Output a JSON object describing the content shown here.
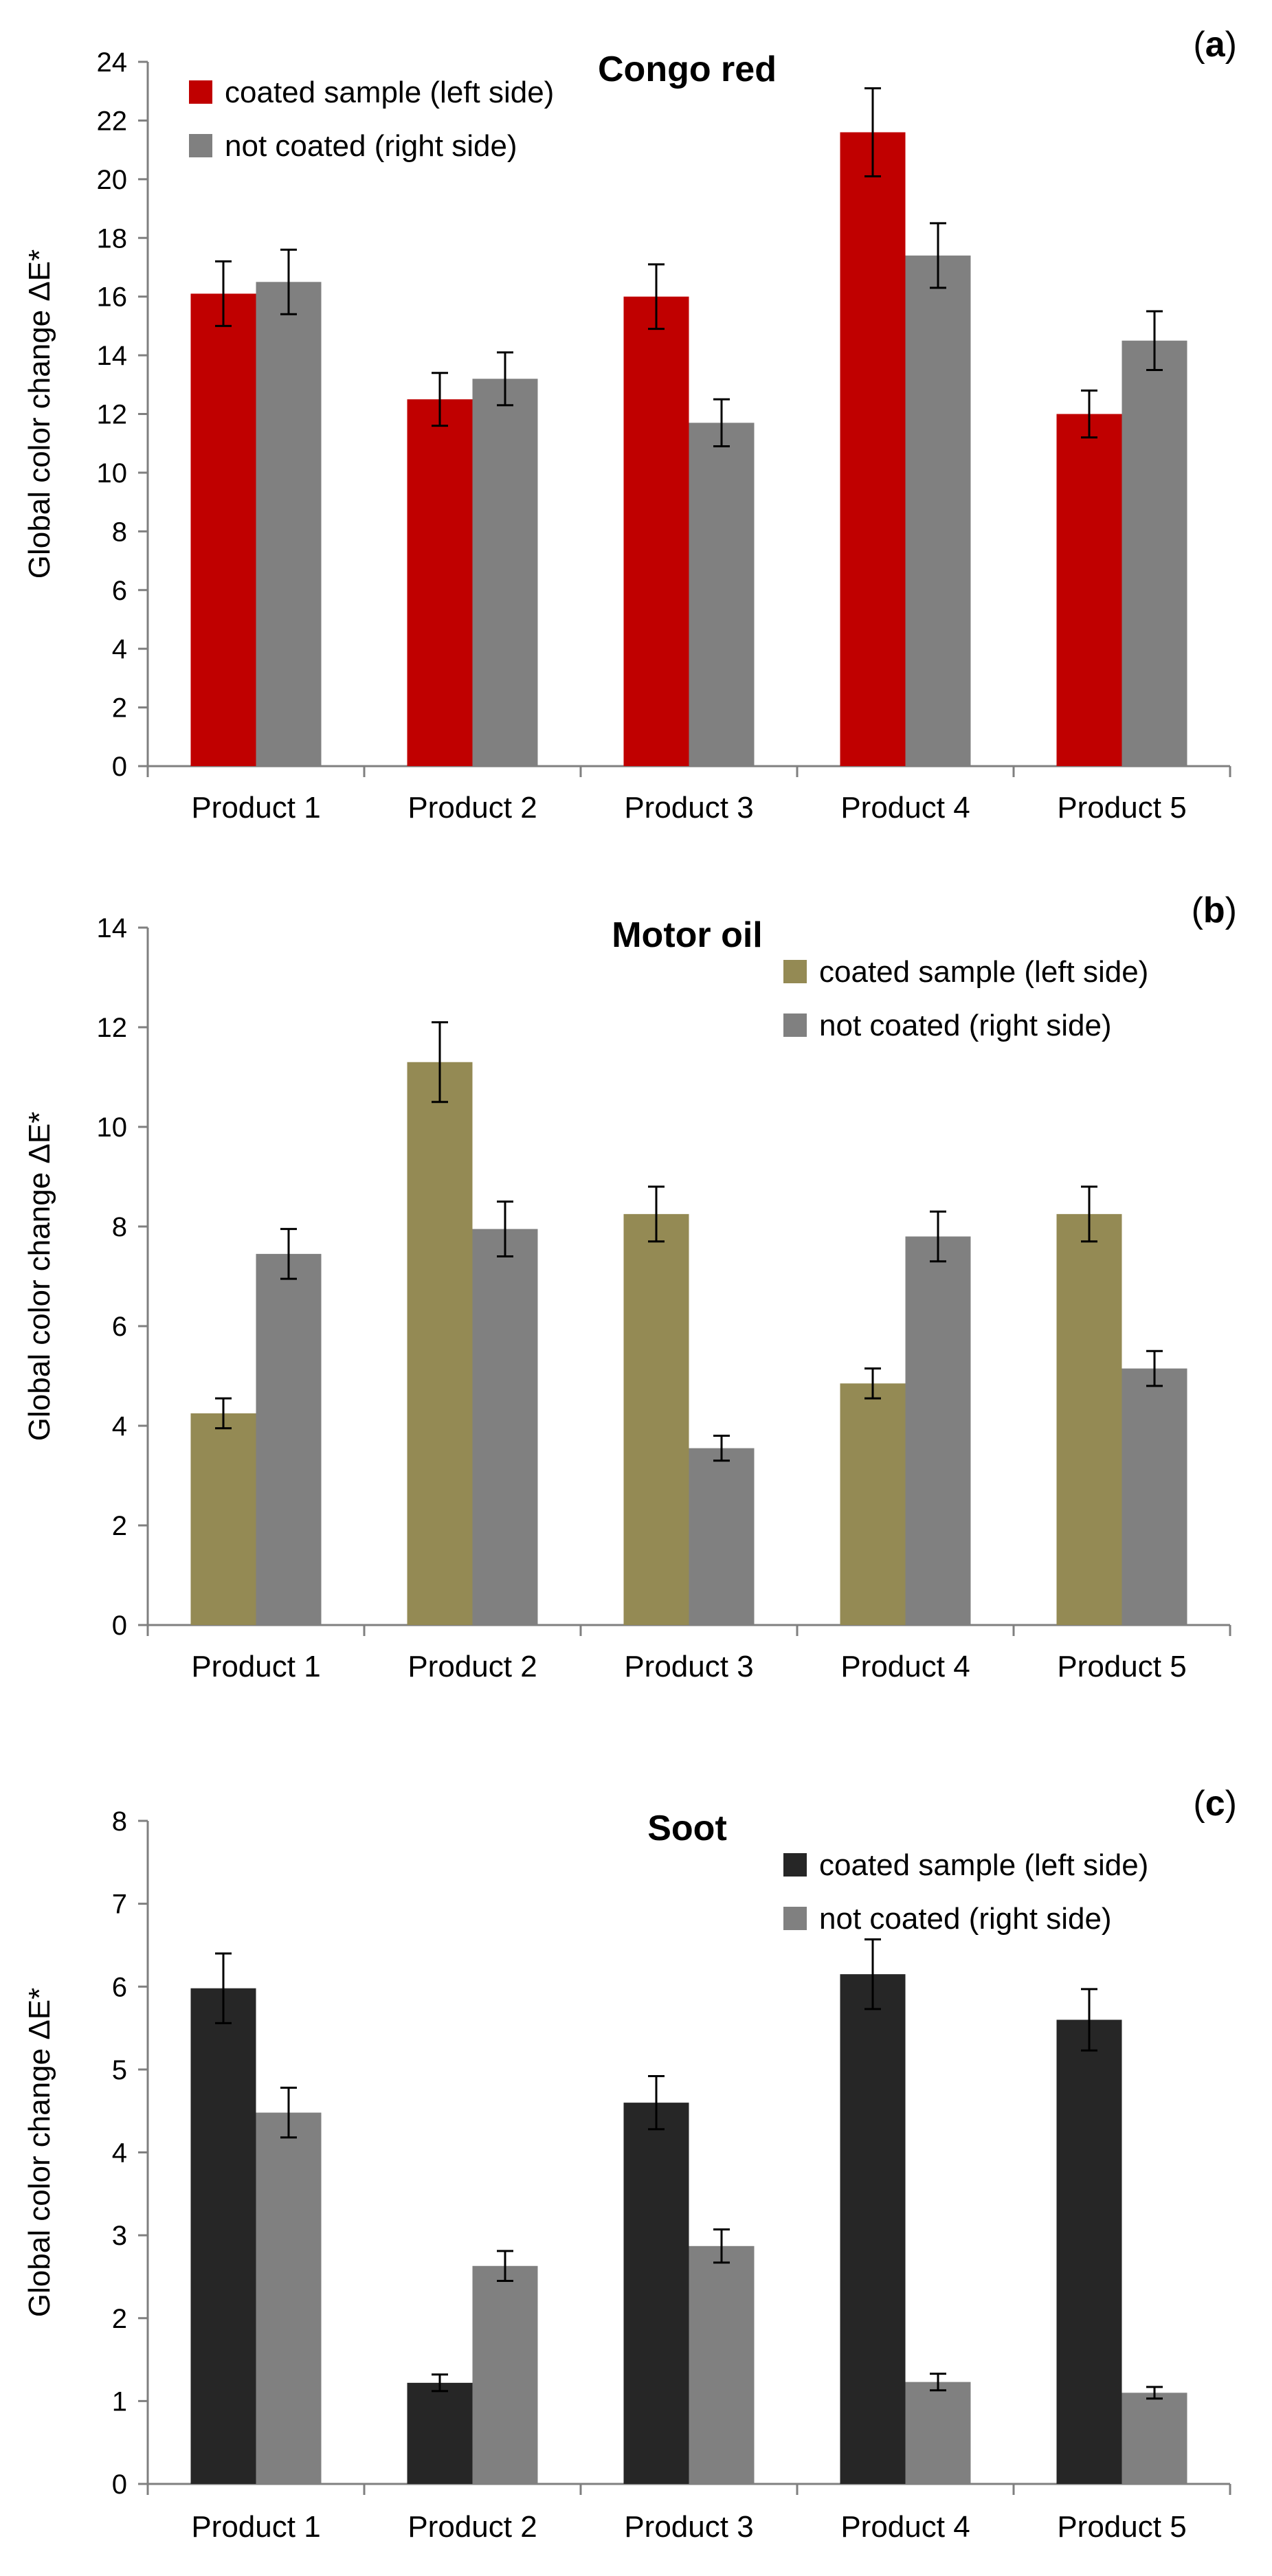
{
  "chart_data": [
    {
      "type": "bar",
      "panel": "a",
      "title": "Congo red",
      "ylabel": "Global color change ΔE*",
      "xlabel": "",
      "ylim": [
        0,
        24
      ],
      "ytick_step": 2,
      "legend_position": "top-left",
      "categories": [
        "Product 1",
        "Product 2",
        "Product 3",
        "Product 4",
        "Product 5"
      ],
      "series": [
        {
          "name": "coated sample (left side)",
          "color": "#C00000",
          "values": [
            16.1,
            12.5,
            16.0,
            21.6,
            12.0
          ],
          "errors": [
            1.1,
            0.9,
            1.1,
            1.5,
            0.8
          ]
        },
        {
          "name": "not coated (right side)",
          "color": "#808080",
          "values": [
            16.5,
            13.2,
            11.7,
            17.4,
            14.5
          ],
          "errors": [
            1.1,
            0.9,
            0.8,
            1.1,
            1.0
          ]
        }
      ]
    },
    {
      "type": "bar",
      "panel": "b",
      "title": "Motor oil",
      "ylabel": "Global color change ΔE*",
      "xlabel": "",
      "ylim": [
        0,
        14
      ],
      "ytick_step": 2,
      "legend_position": "top-right",
      "categories": [
        "Product 1",
        "Product 2",
        "Product 3",
        "Product 4",
        "Product 5"
      ],
      "series": [
        {
          "name": "coated sample (left side)",
          "color": "#948A54",
          "values": [
            4.25,
            11.3,
            8.25,
            4.85,
            8.25
          ],
          "errors": [
            0.3,
            0.8,
            0.55,
            0.3,
            0.55
          ]
        },
        {
          "name": "not coated (right side)",
          "color": "#808080",
          "values": [
            7.45,
            7.95,
            3.55,
            7.8,
            5.15
          ],
          "errors": [
            0.5,
            0.55,
            0.25,
            0.5,
            0.35
          ]
        }
      ]
    },
    {
      "type": "bar",
      "panel": "c",
      "title": "Soot",
      "ylabel": "Global color change ΔE*",
      "xlabel": "",
      "ylim": [
        0,
        8
      ],
      "ytick_step": 1,
      "legend_position": "top-right",
      "categories": [
        "Product 1",
        "Product 2",
        "Product 3",
        "Product 4",
        "Product 5"
      ],
      "series": [
        {
          "name": "coated sample (left side)",
          "color": "#262626",
          "values": [
            5.98,
            1.22,
            4.6,
            6.15,
            5.6
          ],
          "errors": [
            0.42,
            0.1,
            0.32,
            0.42,
            0.37
          ]
        },
        {
          "name": "not coated (right side)",
          "color": "#808080",
          "values": [
            4.48,
            2.63,
            2.87,
            1.23,
            1.1
          ],
          "errors": [
            0.3,
            0.18,
            0.2,
            0.1,
            0.07
          ]
        }
      ]
    }
  ]
}
